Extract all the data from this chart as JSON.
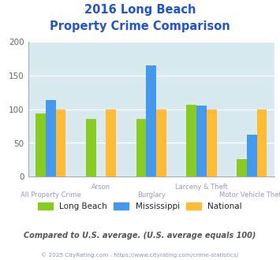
{
  "title_line1": "2016 Long Beach",
  "title_line2": "Property Crime Comparison",
  "categories": [
    "All Property Crime",
    "Arson",
    "Burglary",
    "Larceny & Theft",
    "Motor Vehicle Theft"
  ],
  "series": {
    "Long Beach": [
      94,
      85,
      85,
      106,
      26
    ],
    "Mississippi": [
      113,
      null,
      165,
      105,
      62
    ],
    "National": [
      100,
      100,
      100,
      100,
      100
    ]
  },
  "colors": {
    "Long Beach": "#88cc22",
    "Mississippi": "#4499ee",
    "National": "#ffbb33"
  },
  "ylim": [
    0,
    200
  ],
  "yticks": [
    0,
    50,
    100,
    150,
    200
  ],
  "bg_color": "#d8eaf0",
  "title_color": "#2255cc",
  "xlabel_color": "#9999bb",
  "legend_label_color": "#222222",
  "footer_text": "Compared to U.S. average. (U.S. average equals 100)",
  "footer_color": "#555555",
  "copyright_text": "© 2025 CityRating.com - https://www.cityrating.com/crime-statistics/",
  "copyright_color": "#8899bb",
  "cat_labels_even": [
    "All Property Crime",
    "Burglary",
    "Motor Vehicle Theft"
  ],
  "cat_labels_odd": [
    "Arson",
    "Larceny & Theft"
  ]
}
